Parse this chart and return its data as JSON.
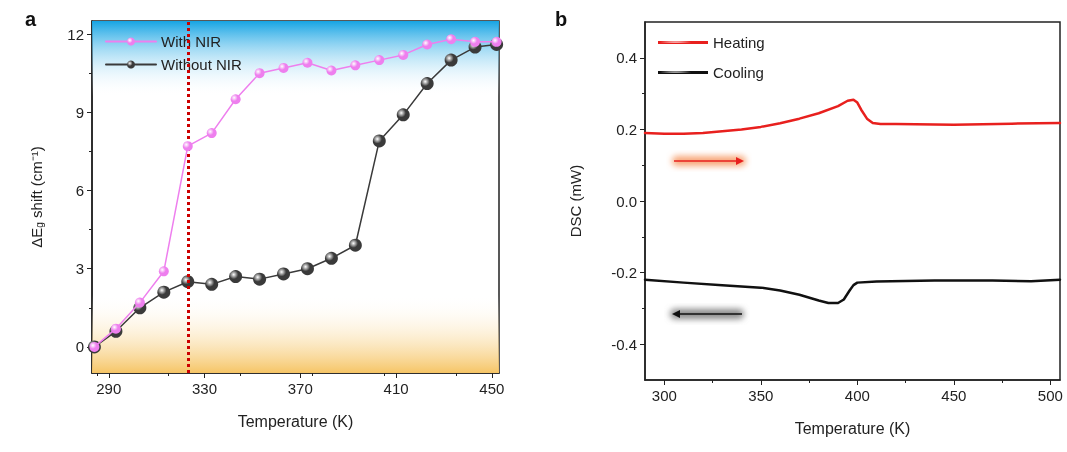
{
  "chart_data": [
    {
      "type": "line",
      "title": "a",
      "xlabel": "Temperature (K)",
      "ylabel": "ΔE$_{g}$ shift (cm⁻¹)",
      "xlim": [
        283,
        453
      ],
      "xticks": [
        290,
        330,
        370,
        410,
        450
      ],
      "ylim": [
        -1,
        12.5
      ],
      "yticks": [
        0,
        3,
        6,
        9,
        12
      ],
      "grid": false,
      "legend": "top left",
      "marker": "circle",
      "line_style": "solid",
      "series": [
        {
          "name": "With NIR",
          "color": "#ee7fee",
          "x": [
            284,
            293,
            303,
            313,
            323,
            333,
            343,
            353,
            363,
            373,
            383,
            393,
            403,
            413,
            423,
            433,
            443,
            452
          ],
          "values": [
            0,
            0.7,
            1.7,
            2.9,
            7.7,
            8.2,
            9.5,
            10.5,
            10.7,
            10.9,
            10.6,
            10.8,
            11.0,
            11.2,
            11.6,
            11.8,
            11.7,
            11.7
          ]
        },
        {
          "name": "Without NIR",
          "color": "#3a3a3a",
          "x": [
            284,
            293,
            303,
            313,
            323,
            333,
            343,
            353,
            363,
            373,
            383,
            393,
            403,
            413,
            423,
            433,
            443,
            452
          ],
          "values": [
            0,
            0.6,
            1.5,
            2.1,
            2.5,
            2.4,
            2.7,
            2.6,
            2.8,
            3.0,
            3.4,
            3.9,
            7.9,
            8.9,
            10.1,
            11.0,
            11.5,
            11.6
          ]
        }
      ],
      "ref_lines": [
        {
          "axis": "x",
          "value": 323,
          "color": "#cc0000",
          "line_style": "dotted"
        }
      ],
      "bands": [
        {
          "axis": "y",
          "from": 9.6,
          "to": 12.5,
          "color": "#16a4e4"
        },
        {
          "axis": "y",
          "from": -1,
          "to": 2,
          "color": "#f6c566"
        }
      ]
    },
    {
      "type": "line",
      "title": "b",
      "xlabel": "Temperature (K)",
      "ylabel": "DSC (mW)",
      "xlim": [
        290,
        505
      ],
      "xticks": [
        300,
        350,
        400,
        450,
        500
      ],
      "ylim": [
        -0.5,
        0.5
      ],
      "yticks": [
        -0.4,
        -0.2,
        {
          "value": 0,
          "label": "0.0"
        },
        0.2,
        0.4
      ],
      "grid": false,
      "legend": "top left",
      "marker": "none",
      "line_style": "solid",
      "series": [
        {
          "name": "Heating",
          "color": "#e8201e",
          "x": [
            290,
            300,
            310,
            320,
            330,
            340,
            350,
            360,
            370,
            380,
            390,
            395,
            398,
            400,
            402,
            405,
            408,
            412,
            420,
            450,
            480,
            505
          ],
          "values": [
            0.19,
            0.188,
            0.188,
            0.19,
            0.195,
            0.2,
            0.207,
            0.217,
            0.23,
            0.245,
            0.265,
            0.28,
            0.283,
            0.275,
            0.255,
            0.23,
            0.218,
            0.215,
            0.215,
            0.213,
            0.216,
            0.218
          ]
        },
        {
          "name": "Cooling",
          "color": "#111111",
          "x": [
            290,
            310,
            330,
            350,
            360,
            370,
            380,
            385,
            390,
            393,
            396,
            398,
            400,
            410,
            440,
            470,
            490,
            505
          ],
          "values": [
            -0.22,
            -0.228,
            -0.235,
            -0.242,
            -0.25,
            -0.262,
            -0.278,
            -0.285,
            -0.285,
            -0.275,
            -0.25,
            -0.235,
            -0.228,
            -0.225,
            -0.222,
            -0.222,
            -0.224,
            -0.22
          ]
        }
      ]
    }
  ]
}
